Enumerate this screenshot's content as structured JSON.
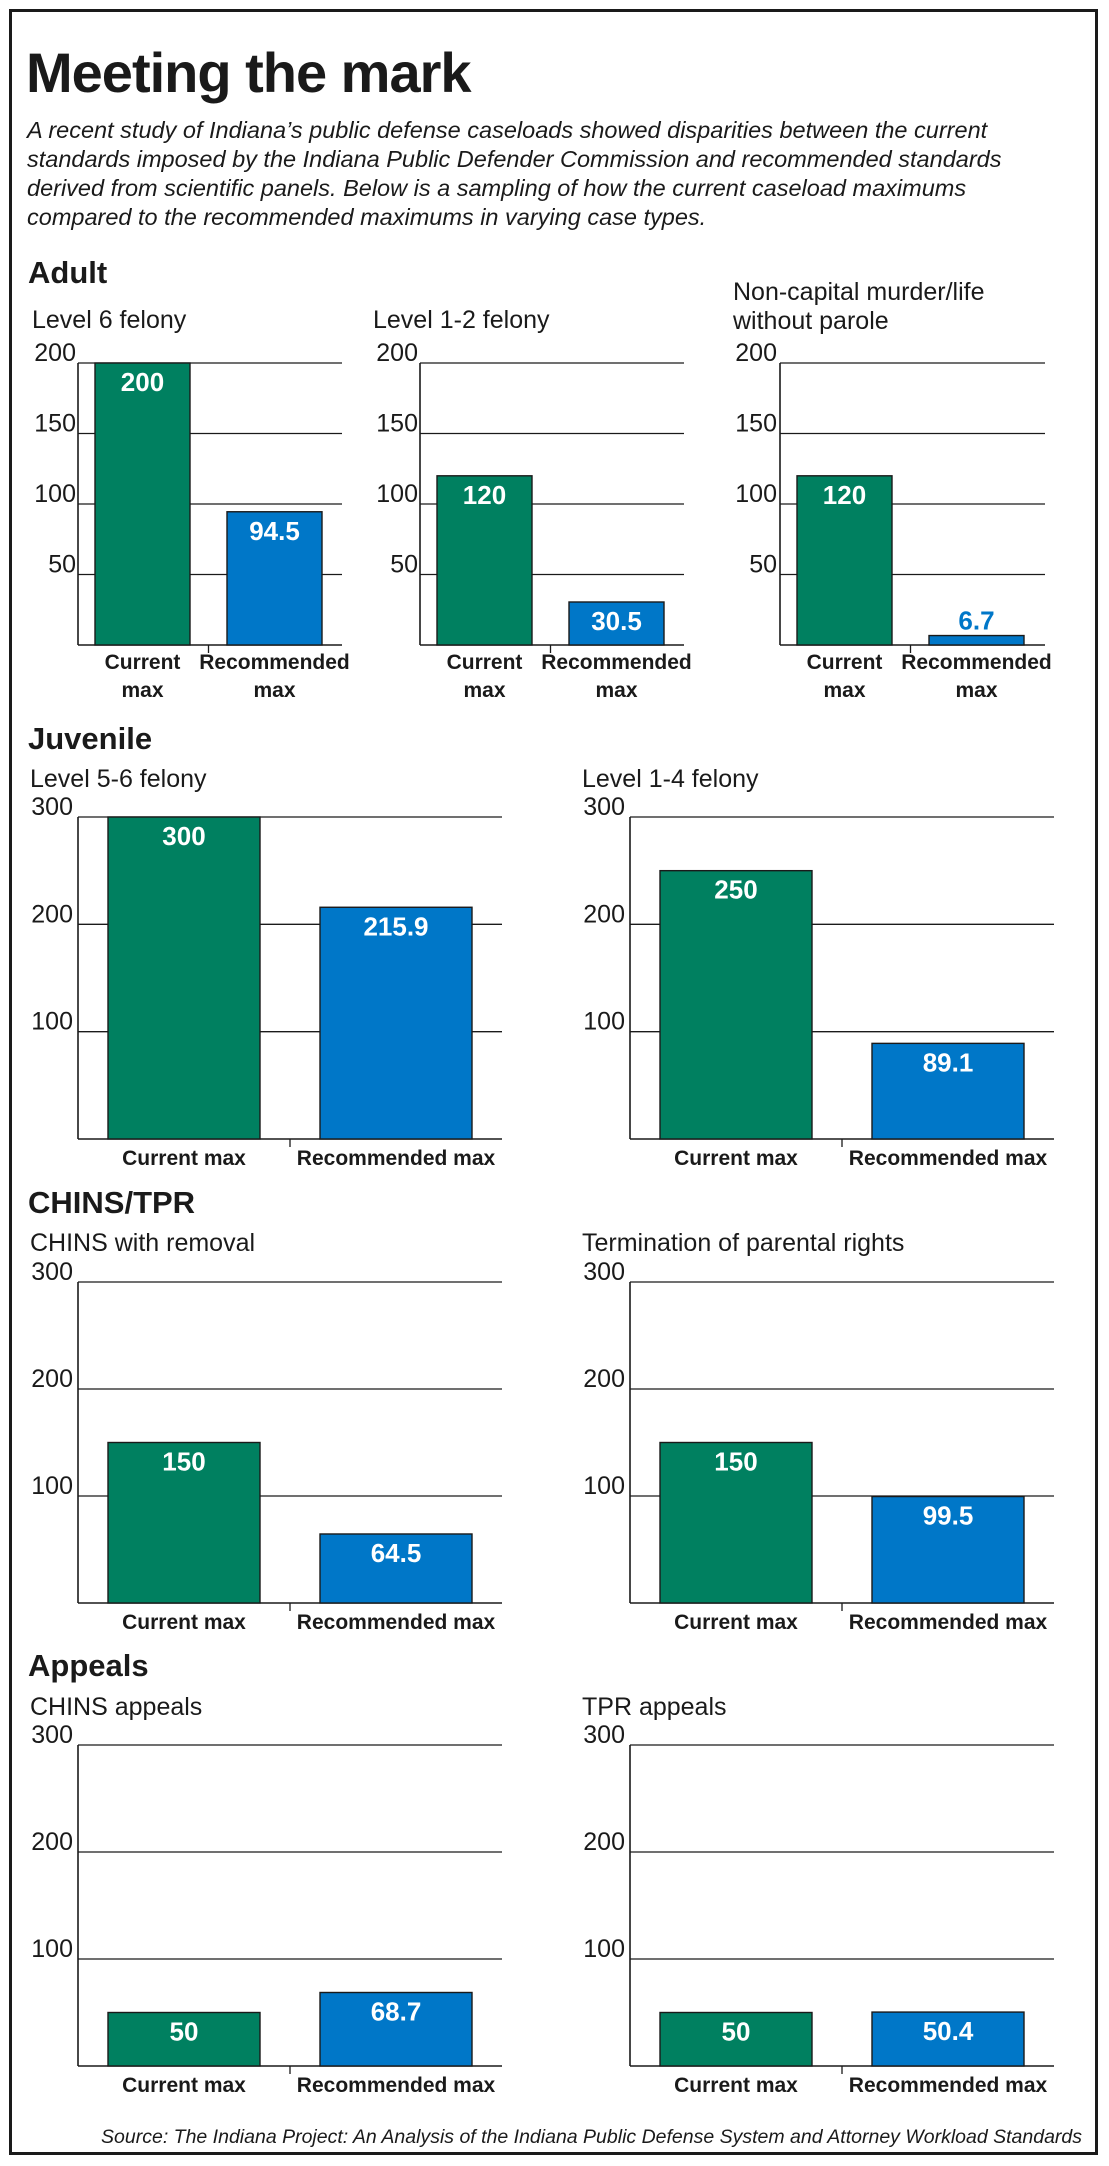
{
  "header": {
    "title": "Meeting the mark",
    "intro": [
      "A recent study of Indiana’s public defense caseloads showed disparities between the current",
      "standards imposed by the Indiana Public Defender Commission and recommended standards",
      "derived from scientific panels. Below is a sampling of how the current caseload maximums",
      "compared to the recommended maximums in varying case types."
    ]
  },
  "sections": {
    "adult": "Adult",
    "juvenile": "Juvenile",
    "chins_tpr": "CHINS/TPR",
    "appeals": "Appeals"
  },
  "source": "Source: The Indiana Project: An Analysis of the Indiana Public Defense System and Attorney Workload Standards",
  "colors": {
    "current": "#008060",
    "recommended": "#0077c8",
    "axis": "#1a1a1a"
  },
  "chart_data": [
    {
      "type": "bar",
      "title": [
        "Level 6 felony"
      ],
      "categories": [
        [
          "Current",
          "max"
        ],
        [
          "Recommended",
          "max"
        ]
      ],
      "values": [
        200,
        94.5
      ],
      "labels": [
        "200",
        "94.5"
      ],
      "yticks": [
        50,
        100,
        150,
        200
      ],
      "ylim": [
        0,
        200
      ],
      "grid": true
    },
    {
      "type": "bar",
      "title": [
        "Level 1-2 felony"
      ],
      "categories": [
        [
          "Current",
          "max"
        ],
        [
          "Recommended",
          "max"
        ]
      ],
      "values": [
        120,
        30.5
      ],
      "labels": [
        "120",
        "30.5"
      ],
      "yticks": [
        50,
        100,
        150,
        200
      ],
      "ylim": [
        0,
        200
      ],
      "grid": true
    },
    {
      "type": "bar",
      "title": [
        "Non-capital murder/life",
        "without parole"
      ],
      "categories": [
        [
          "Current",
          "max"
        ],
        [
          "Recommended",
          "max"
        ]
      ],
      "values": [
        120,
        6.7
      ],
      "labels": [
        "120",
        "6.7"
      ],
      "yticks": [
        50,
        100,
        150,
        200
      ],
      "ylim": [
        0,
        200
      ],
      "grid": true
    },
    {
      "type": "bar",
      "title": [
        "Level 5-6 felony"
      ],
      "categories": [
        [
          "Current max"
        ],
        [
          "Recommended max"
        ]
      ],
      "values": [
        300,
        215.9
      ],
      "labels": [
        "300",
        "215.9"
      ],
      "yticks": [
        100,
        200,
        300
      ],
      "ylim": [
        0,
        300
      ],
      "grid": true
    },
    {
      "type": "bar",
      "title": [
        "Level 1-4 felony"
      ],
      "categories": [
        [
          "Current max"
        ],
        [
          "Recommended max"
        ]
      ],
      "values": [
        250,
        89.1
      ],
      "labels": [
        "250",
        "89.1"
      ],
      "yticks": [
        100,
        200,
        300
      ],
      "ylim": [
        0,
        300
      ],
      "grid": true
    },
    {
      "type": "bar",
      "title": [
        "CHINS with removal"
      ],
      "categories": [
        [
          "Current max"
        ],
        [
          "Recommended max"
        ]
      ],
      "values": [
        150,
        64.5
      ],
      "labels": [
        "150",
        "64.5"
      ],
      "yticks": [
        100,
        200,
        300
      ],
      "ylim": [
        0,
        300
      ],
      "grid": true
    },
    {
      "type": "bar",
      "title": [
        "Termination of parental rights"
      ],
      "categories": [
        [
          "Current max"
        ],
        [
          "Recommended max"
        ]
      ],
      "values": [
        150,
        99.5
      ],
      "labels": [
        "150",
        "99.5"
      ],
      "yticks": [
        100,
        200,
        300
      ],
      "ylim": [
        0,
        300
      ],
      "grid": true
    },
    {
      "type": "bar",
      "title": [
        "CHINS appeals"
      ],
      "categories": [
        [
          "Current max"
        ],
        [
          "Recommended max"
        ]
      ],
      "values": [
        50,
        68.7
      ],
      "labels": [
        "50",
        "68.7"
      ],
      "yticks": [
        100,
        200,
        300
      ],
      "ylim": [
        0,
        300
      ],
      "grid": true
    },
    {
      "type": "bar",
      "title": [
        "TPR appeals"
      ],
      "categories": [
        [
          "Current max"
        ],
        [
          "Recommended max"
        ]
      ],
      "values": [
        50,
        50.4
      ],
      "labels": [
        "50",
        "50.4"
      ],
      "yticks": [
        100,
        200,
        300
      ],
      "ylim": [
        0,
        300
      ],
      "grid": true
    }
  ]
}
